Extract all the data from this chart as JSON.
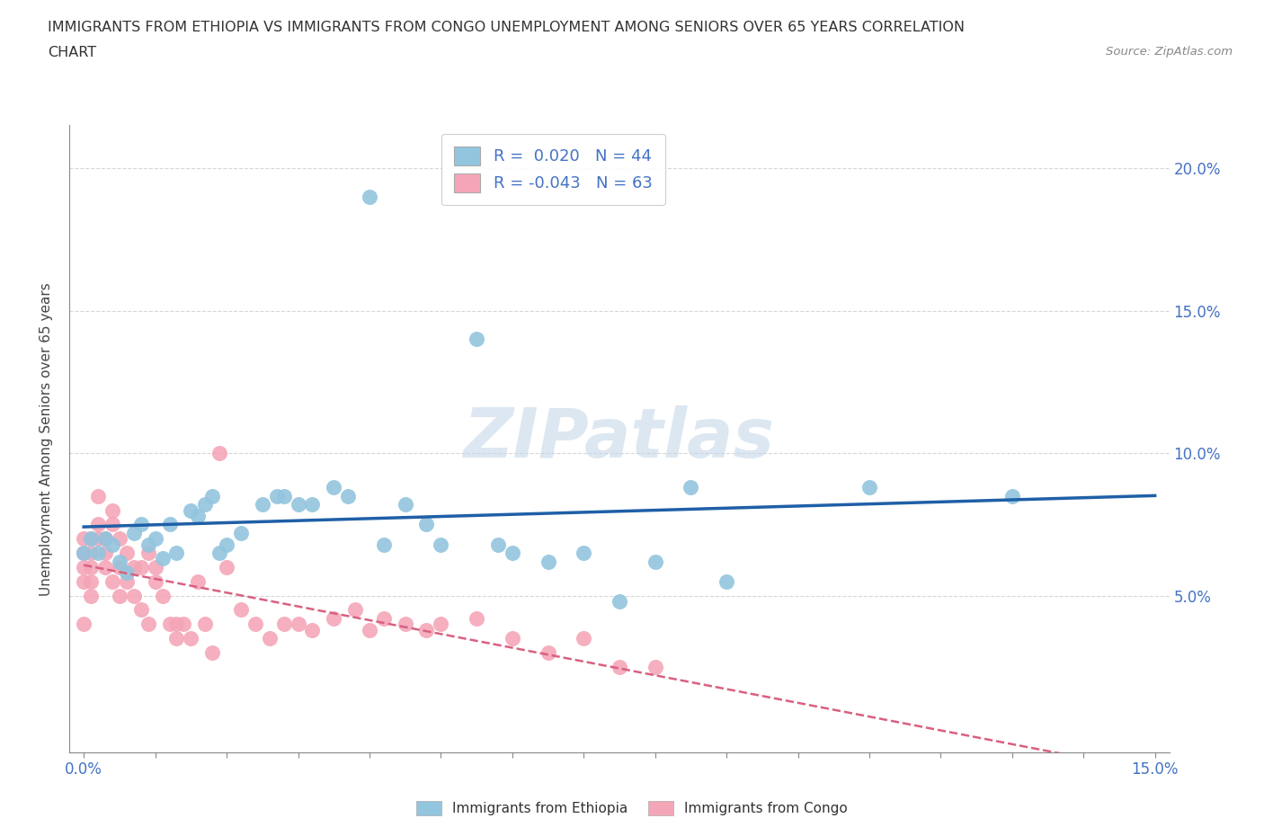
{
  "title_line1": "IMMIGRANTS FROM ETHIOPIA VS IMMIGRANTS FROM CONGO UNEMPLOYMENT AMONG SENIORS OVER 65 YEARS CORRELATION",
  "title_line2": "CHART",
  "source": "Source: ZipAtlas.com",
  "ylabel": "Unemployment Among Seniors over 65 years",
  "legend_ethiopia": {
    "R": 0.02,
    "N": 44
  },
  "legend_congo": {
    "R": -0.043,
    "N": 63
  },
  "ethiopia_color": "#92c5de",
  "congo_color": "#f4a6b8",
  "ethiopia_line_color": "#1f5fa6",
  "congo_line_color": "#d96080",
  "background_color": "#ffffff",
  "watermark": "ZIPatlas",
  "ethiopia_points_x": [
    0.0,
    0.001,
    0.002,
    0.003,
    0.004,
    0.005,
    0.006,
    0.007,
    0.008,
    0.009,
    0.01,
    0.011,
    0.012,
    0.013,
    0.015,
    0.016,
    0.017,
    0.018,
    0.019,
    0.02,
    0.022,
    0.025,
    0.027,
    0.028,
    0.03,
    0.032,
    0.035,
    0.037,
    0.04,
    0.042,
    0.045,
    0.048,
    0.05,
    0.055,
    0.058,
    0.06,
    0.065,
    0.07,
    0.075,
    0.08,
    0.085,
    0.09,
    0.11,
    0.13
  ],
  "ethiopia_points_y": [
    0.065,
    0.07,
    0.065,
    0.07,
    0.068,
    0.062,
    0.058,
    0.072,
    0.075,
    0.068,
    0.07,
    0.063,
    0.075,
    0.065,
    0.08,
    0.078,
    0.082,
    0.085,
    0.065,
    0.068,
    0.072,
    0.082,
    0.085,
    0.085,
    0.082,
    0.082,
    0.088,
    0.085,
    0.19,
    0.068,
    0.082,
    0.075,
    0.068,
    0.14,
    0.068,
    0.065,
    0.062,
    0.065,
    0.048,
    0.062,
    0.088,
    0.055,
    0.088,
    0.085
  ],
  "congo_points_x": [
    0.0,
    0.0,
    0.0,
    0.0,
    0.0,
    0.0,
    0.001,
    0.001,
    0.001,
    0.001,
    0.001,
    0.002,
    0.002,
    0.002,
    0.003,
    0.003,
    0.003,
    0.004,
    0.004,
    0.004,
    0.005,
    0.005,
    0.005,
    0.006,
    0.006,
    0.007,
    0.007,
    0.008,
    0.008,
    0.009,
    0.009,
    0.01,
    0.01,
    0.011,
    0.012,
    0.013,
    0.013,
    0.014,
    0.015,
    0.016,
    0.017,
    0.018,
    0.019,
    0.02,
    0.022,
    0.024,
    0.026,
    0.028,
    0.03,
    0.032,
    0.035,
    0.038,
    0.04,
    0.042,
    0.045,
    0.048,
    0.05,
    0.055,
    0.06,
    0.065,
    0.07,
    0.075,
    0.08
  ],
  "congo_points_y": [
    0.065,
    0.06,
    0.07,
    0.065,
    0.055,
    0.04,
    0.07,
    0.065,
    0.06,
    0.055,
    0.05,
    0.085,
    0.075,
    0.07,
    0.07,
    0.065,
    0.06,
    0.08,
    0.075,
    0.055,
    0.07,
    0.06,
    0.05,
    0.065,
    0.055,
    0.05,
    0.06,
    0.06,
    0.045,
    0.065,
    0.04,
    0.06,
    0.055,
    0.05,
    0.04,
    0.04,
    0.035,
    0.04,
    0.035,
    0.055,
    0.04,
    0.03,
    0.1,
    0.06,
    0.045,
    0.04,
    0.035,
    0.04,
    0.04,
    0.038,
    0.042,
    0.045,
    0.038,
    0.042,
    0.04,
    0.038,
    0.04,
    0.042,
    0.035,
    0.03,
    0.035,
    0.025,
    0.025
  ]
}
